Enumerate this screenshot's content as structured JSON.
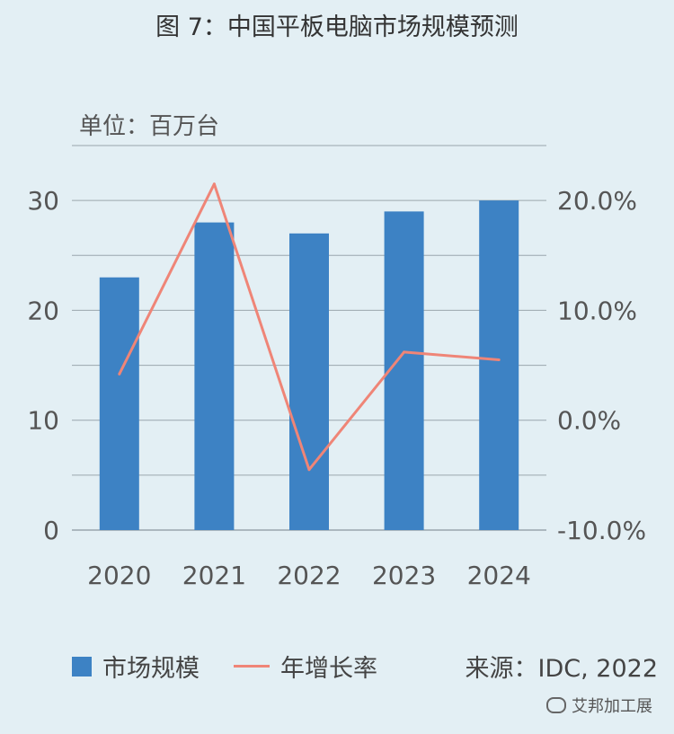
{
  "title": "图 7：中国平板电脑市场规模预测",
  "unit_label": "单位：百万台",
  "source": "来源：IDC, 2022",
  "watermark": "艾邦加工展",
  "colors": {
    "bar": "#3d82c4",
    "line": "#ef8577",
    "grid": "#9aa6ad",
    "background": "#e3eff4"
  },
  "chart_data": {
    "type": "bar",
    "categories": [
      "2020",
      "2021",
      "2022",
      "2023",
      "2024"
    ],
    "series": [
      {
        "name": "市场规模",
        "type": "bar",
        "axis": "left",
        "values": [
          23,
          28,
          27,
          29,
          30
        ]
      },
      {
        "name": "年增长率",
        "type": "line",
        "axis": "right",
        "values": [
          4.2,
          21.5,
          -4.5,
          6.2,
          5.5
        ]
      }
    ],
    "y_left": {
      "ylim": [
        0,
        35
      ],
      "ticks": [
        "0",
        "10",
        "20",
        "30"
      ],
      "tick_values": [
        0,
        10,
        20,
        30
      ]
    },
    "y_right": {
      "ylim": [
        -10,
        25
      ],
      "ticks": [
        "-10.0%",
        "0.0%",
        "10.0%",
        "20.0%"
      ],
      "tick_values": [
        -10,
        0,
        10,
        20
      ]
    },
    "grid": true,
    "legend": "bottom-left"
  }
}
